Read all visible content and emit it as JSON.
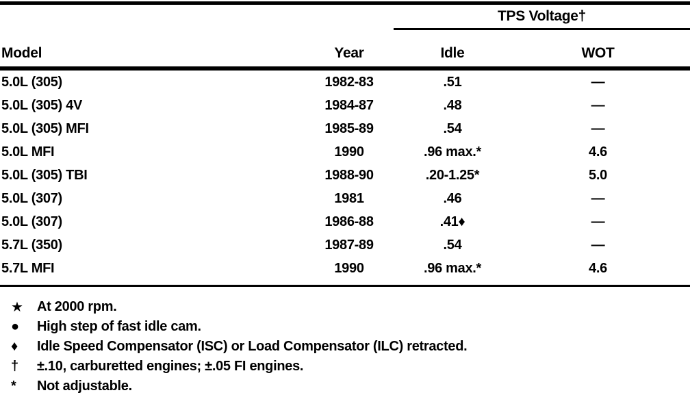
{
  "table": {
    "group_header": "TPS Voltage†",
    "columns": [
      "Model",
      "Year",
      "Idle",
      "WOT"
    ],
    "rows": [
      {
        "model": "5.0L (305)",
        "year": "1982-83",
        "idle": ".51",
        "wot": "—"
      },
      {
        "model": "5.0L (305) 4V",
        "year": "1984-87",
        "idle": ".48",
        "wot": "—"
      },
      {
        "model": "5.0L (305) MFI",
        "year": "1985-89",
        "idle": ".54",
        "wot": "—"
      },
      {
        "model": "5.0L MFI",
        "year": "1990",
        "idle": ".96 max.*",
        "wot": "4.6"
      },
      {
        "model": "5.0L (305) TBI",
        "year": "1988-90",
        "idle": ".20-1.25*",
        "wot": "5.0"
      },
      {
        "model": "5.0L (307)",
        "year": "1981",
        "idle": ".46",
        "wot": "—"
      },
      {
        "model": "5.0L (307)",
        "year": "1986-88",
        "idle": ".41♦",
        "wot": "—"
      },
      {
        "model": "5.7L (350)",
        "year": "1987-89",
        "idle": ".54",
        "wot": "—"
      },
      {
        "model": "5.7L MFI",
        "year": "1990",
        "idle": ".96 max.*",
        "wot": "4.6"
      }
    ]
  },
  "footnotes": [
    {
      "symbol": "★",
      "text": "At 2000 rpm."
    },
    {
      "symbol": "●",
      "text": "High step of fast idle cam."
    },
    {
      "symbol": "♦",
      "text": "Idle Speed Compensator (ISC) or Load Compensator (ILC) retracted."
    },
    {
      "symbol": "†",
      "text": "±.10, carburetted engines; ±.05 FI engines."
    },
    {
      "symbol": "*",
      "text": "Not adjustable."
    }
  ]
}
